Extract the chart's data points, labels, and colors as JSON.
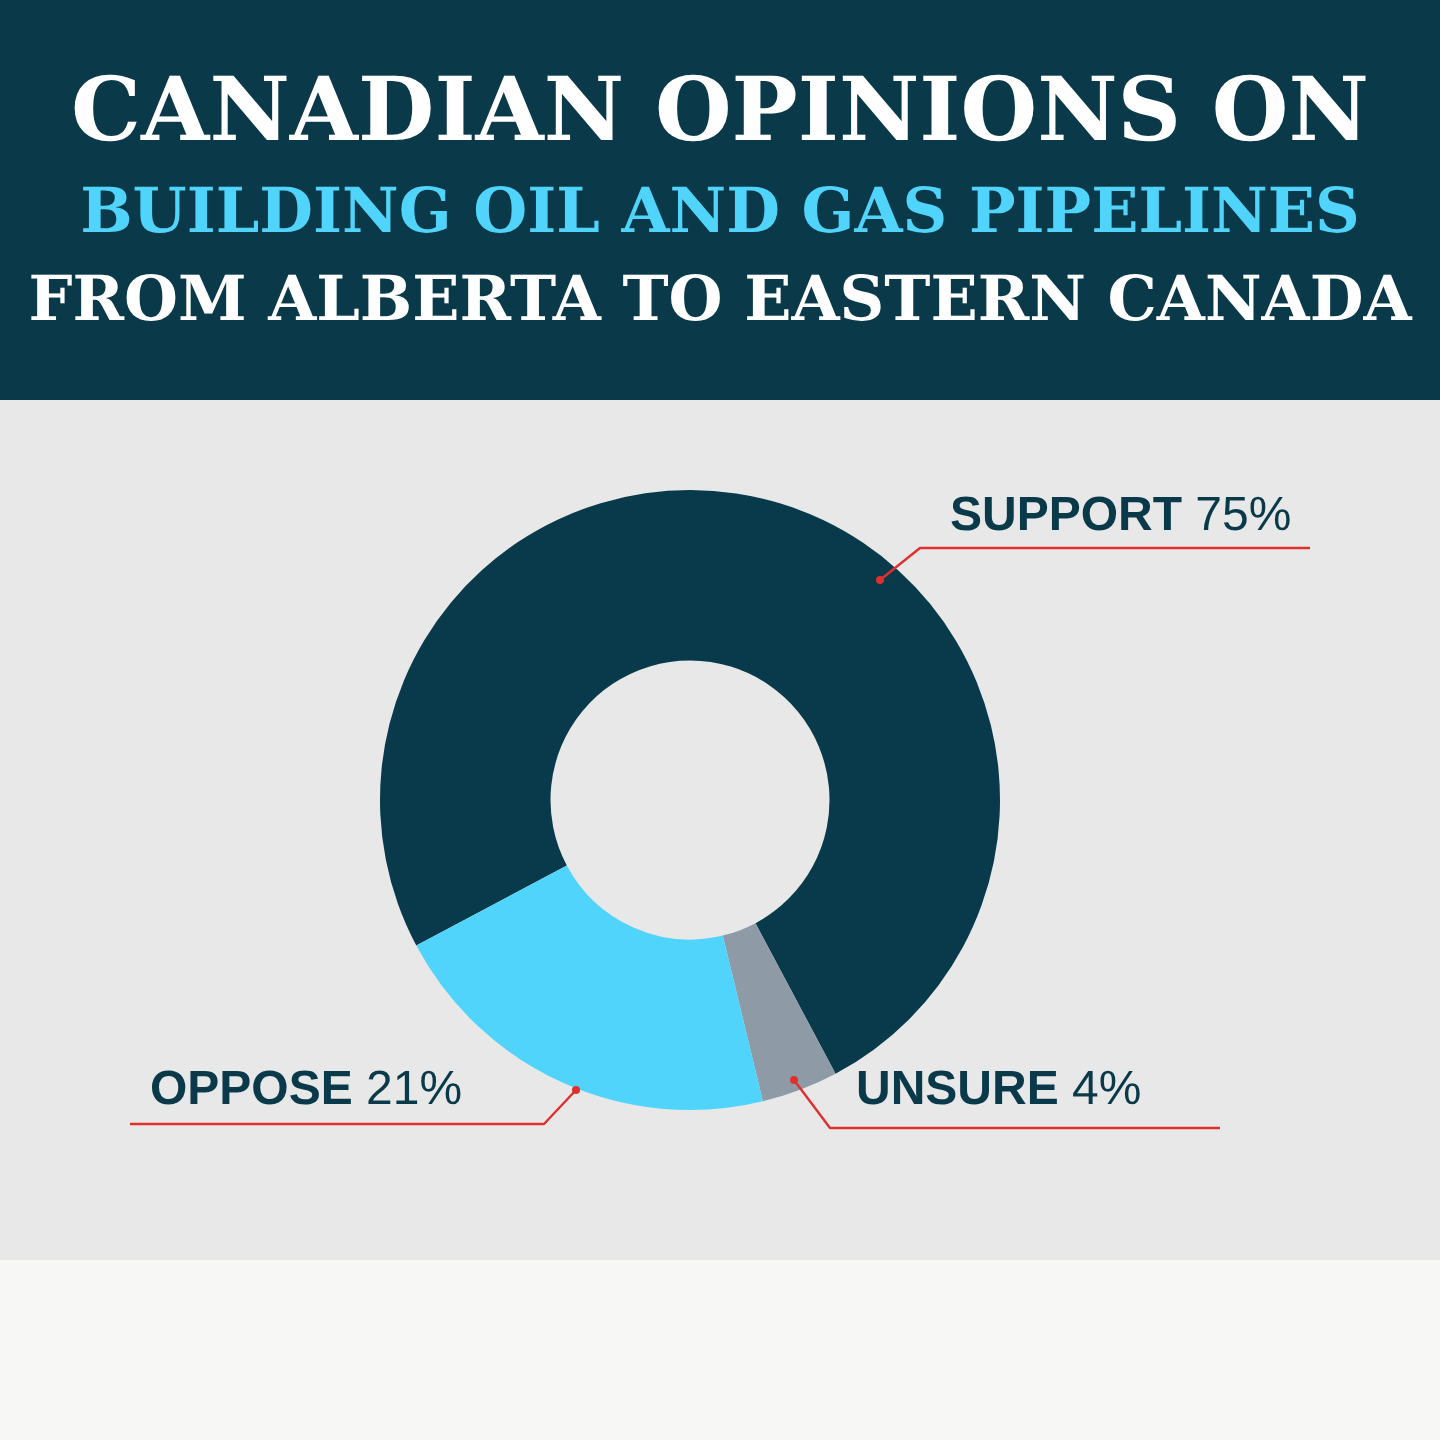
{
  "chart_data": {
    "type": "donut",
    "title": "CANADIAN OPINIONS ON\nBUILDING OIL AND GAS PIPELINES\nFROM ALBERTA TO EASTERN CANADA",
    "categories": [
      "SUPPORT",
      "UNSURE",
      "OPPOSE"
    ],
    "values": [
      75,
      4,
      21
    ],
    "value_labels": [
      "75%",
      "4%",
      "21%"
    ],
    "colors": [
      "#083a4b",
      "#8e9aa5",
      "#50d4fb"
    ],
    "legend": false
  }
}
